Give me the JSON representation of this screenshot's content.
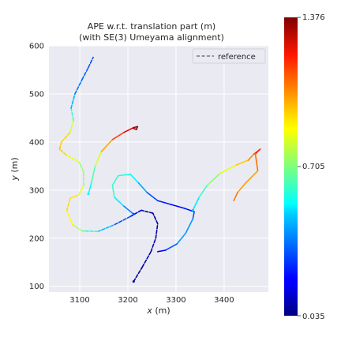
{
  "chart_data": {
    "type": "line",
    "title": "APE w.r.t. translation part (m)",
    "subtitle": "(with SE(3) Umeyama alignment)",
    "xlabel": "x (m)",
    "ylabel": "y (m)",
    "xlim": [
      3036,
      3492
    ],
    "ylim": [
      88,
      600
    ],
    "xticks": [
      3100,
      3200,
      3300,
      3400
    ],
    "yticks": [
      100,
      200,
      300,
      400,
      500,
      600
    ],
    "grid": true,
    "legend": {
      "placement": "top-right",
      "entries": [
        "reference"
      ]
    },
    "colorbar": {
      "min": 0.035,
      "max": 1.376,
      "ticks": [
        "1.376",
        "0.705",
        "0.035"
      ],
      "colormap": "jet"
    },
    "series": [
      {
        "name": "reference",
        "style": "dashed",
        "points": [
          {
            "x": 3212,
            "y": 110,
            "e": 0.08
          },
          {
            "x": 3230,
            "y": 140,
            "e": 0.08
          },
          {
            "x": 3248,
            "y": 172,
            "e": 0.12
          },
          {
            "x": 3258,
            "y": 200,
            "e": 0.1
          },
          {
            "x": 3262,
            "y": 230,
            "e": 0.08
          },
          {
            "x": 3252,
            "y": 252,
            "e": 0.06
          },
          {
            "x": 3228,
            "y": 258,
            "e": 0.09
          },
          {
            "x": 3205,
            "y": 245,
            "e": 0.22
          },
          {
            "x": 3170,
            "y": 227,
            "e": 0.4
          },
          {
            "x": 3138,
            "y": 214,
            "e": 0.48
          },
          {
            "x": 3105,
            "y": 215,
            "e": 0.7
          },
          {
            "x": 3085,
            "y": 228,
            "e": 0.84
          },
          {
            "x": 3073,
            "y": 257,
            "e": 0.9
          },
          {
            "x": 3080,
            "y": 283,
            "e": 0.93
          },
          {
            "x": 3098,
            "y": 290,
            "e": 0.88
          },
          {
            "x": 3108,
            "y": 310,
            "e": 0.8
          },
          {
            "x": 3108,
            "y": 338,
            "e": 0.7
          },
          {
            "x": 3099,
            "y": 358,
            "e": 0.78
          },
          {
            "x": 3072,
            "y": 373,
            "e": 0.92
          },
          {
            "x": 3058,
            "y": 385,
            "e": 0.95
          },
          {
            "x": 3062,
            "y": 400,
            "e": 0.95
          },
          {
            "x": 3080,
            "y": 420,
            "e": 0.9
          },
          {
            "x": 3087,
            "y": 445,
            "e": 0.74
          },
          {
            "x": 3082,
            "y": 470,
            "e": 0.5
          },
          {
            "x": 3090,
            "y": 500,
            "e": 0.38
          },
          {
            "x": 3105,
            "y": 530,
            "e": 0.34
          },
          {
            "x": 3118,
            "y": 555,
            "e": 0.32
          },
          {
            "x": 3128,
            "y": 576,
            "e": 0.3
          }
        ]
      },
      {
        "name": "",
        "style": "solid",
        "points": [
          {
            "x": 3118,
            "y": 292,
            "e": 0.52
          },
          {
            "x": 3125,
            "y": 318,
            "e": 0.58
          },
          {
            "x": 3132,
            "y": 350,
            "e": 0.72
          },
          {
            "x": 3145,
            "y": 380,
            "e": 0.92
          },
          {
            "x": 3168,
            "y": 405,
            "e": 1.05
          },
          {
            "x": 3192,
            "y": 420,
            "e": 1.18
          },
          {
            "x": 3212,
            "y": 430,
            "e": 1.3
          },
          {
            "x": 3220,
            "y": 432,
            "e": 1.36
          },
          {
            "x": 3218,
            "y": 426,
            "e": 1.37
          },
          {
            "x": 3212,
            "y": 428,
            "e": 1.35
          }
        ]
      },
      {
        "name": "",
        "style": "solid",
        "points": [
          {
            "x": 3212,
            "y": 250,
            "e": 0.3
          },
          {
            "x": 3190,
            "y": 268,
            "e": 0.45
          },
          {
            "x": 3172,
            "y": 285,
            "e": 0.58
          },
          {
            "x": 3168,
            "y": 310,
            "e": 0.62
          },
          {
            "x": 3180,
            "y": 330,
            "e": 0.6
          },
          {
            "x": 3205,
            "y": 333,
            "e": 0.58
          },
          {
            "x": 3222,
            "y": 315,
            "e": 0.48
          },
          {
            "x": 3240,
            "y": 295,
            "e": 0.36
          },
          {
            "x": 3262,
            "y": 278,
            "e": 0.26
          },
          {
            "x": 3290,
            "y": 270,
            "e": 0.22
          },
          {
            "x": 3318,
            "y": 262,
            "e": 0.2
          },
          {
            "x": 3338,
            "y": 255,
            "e": 0.26
          },
          {
            "x": 3335,
            "y": 240,
            "e": 0.36
          },
          {
            "x": 3320,
            "y": 210,
            "e": 0.44
          },
          {
            "x": 3302,
            "y": 188,
            "e": 0.4
          },
          {
            "x": 3278,
            "y": 175,
            "e": 0.24
          },
          {
            "x": 3262,
            "y": 172,
            "e": 0.14
          }
        ]
      },
      {
        "name": "",
        "style": "solid",
        "points": [
          {
            "x": 3335,
            "y": 258,
            "e": 0.46
          },
          {
            "x": 3348,
            "y": 285,
            "e": 0.56
          },
          {
            "x": 3365,
            "y": 310,
            "e": 0.66
          },
          {
            "x": 3392,
            "y": 335,
            "e": 0.78
          },
          {
            "x": 3425,
            "y": 352,
            "e": 0.9
          },
          {
            "x": 3450,
            "y": 362,
            "e": 0.98
          },
          {
            "x": 3462,
            "y": 375,
            "e": 1.08
          },
          {
            "x": 3475,
            "y": 385,
            "e": 1.18
          },
          {
            "x": 3465,
            "y": 375,
            "e": 1.1
          },
          {
            "x": 3470,
            "y": 340,
            "e": 1.02
          },
          {
            "x": 3445,
            "y": 315,
            "e": 0.98
          },
          {
            "x": 3428,
            "y": 295,
            "e": 1.02
          },
          {
            "x": 3420,
            "y": 278,
            "e": 1.08
          }
        ]
      }
    ]
  }
}
